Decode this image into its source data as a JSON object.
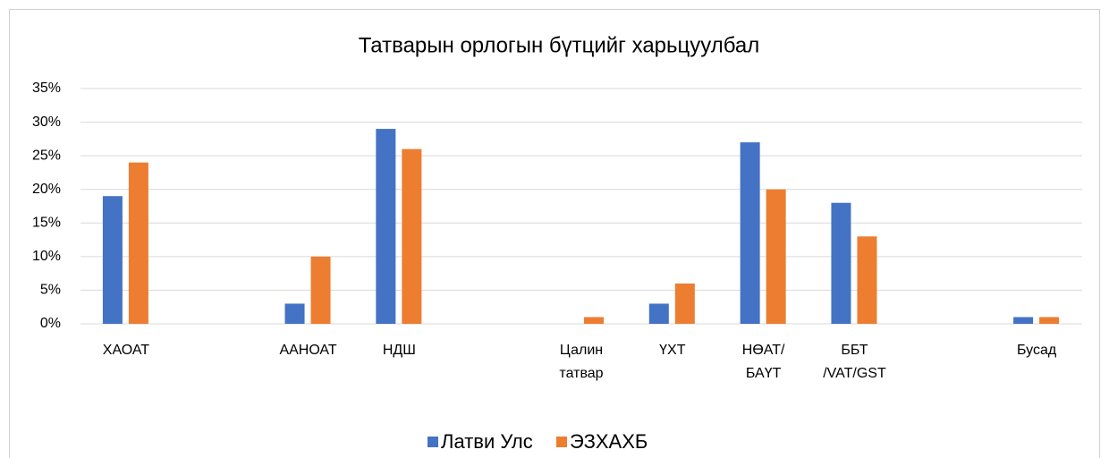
{
  "chart_data": {
    "type": "bar",
    "title": "Татварын орлогын бүтцийг харьцуулбал",
    "categories": [
      "ХАОАТ",
      null,
      "ААНОАТ",
      "НДШ",
      null,
      "Цалин татвар",
      "ҮХТ",
      "НӨАТ/ БАҮТ",
      "ББТ /VAT/GST",
      null,
      "Бусад"
    ],
    "series": [
      {
        "name": "Латви Улс",
        "color": "#4472c4",
        "values": [
          19,
          null,
          3,
          29,
          null,
          null,
          3,
          27,
          18,
          null,
          1
        ]
      },
      {
        "name": "ЭЗХАХБ",
        "color": "#ed7d31",
        "values": [
          24,
          null,
          10,
          26,
          null,
          1,
          6,
          20,
          13,
          null,
          1
        ]
      }
    ],
    "ylim": [
      0,
      35
    ],
    "yticks": [
      {
        "value": 0,
        "label": "0%"
      },
      {
        "value": 5,
        "label": "5%"
      },
      {
        "value": 10,
        "label": "10%"
      },
      {
        "value": 15,
        "label": "15%"
      },
      {
        "value": 20,
        "label": "20%"
      },
      {
        "value": 25,
        "label": "25%"
      },
      {
        "value": 30,
        "label": "30%"
      },
      {
        "value": 35,
        "label": "35%"
      }
    ],
    "grid": true,
    "legend": "bottom"
  }
}
